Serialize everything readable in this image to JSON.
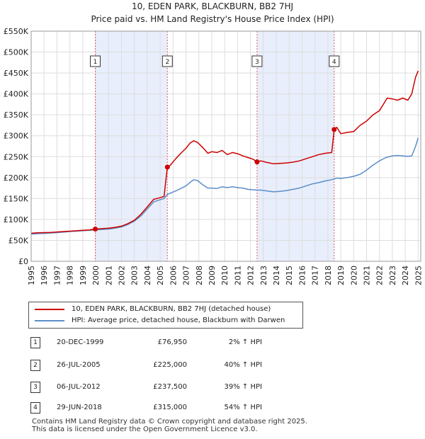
{
  "header": {
    "title": "10, EDEN PARK, BLACKBURN, BB2 7HJ",
    "subtitle": "Price paid vs. HM Land Registry's House Price Index (HPI)"
  },
  "chart_data": {
    "type": "line",
    "title": "10, EDEN PARK, BLACKBURN, BB2 7HJ",
    "subtitle": "Price paid vs. HM Land Registry's House Price Index (HPI)",
    "xlabel": "",
    "ylabel": "",
    "xlim": [
      1995,
      2025.2
    ],
    "ylim": [
      0,
      550000
    ],
    "y_ticks": [
      {
        "value": 0,
        "label": "£0"
      },
      {
        "value": 50000,
        "label": "£50K"
      },
      {
        "value": 100000,
        "label": "£100K"
      },
      {
        "value": 150000,
        "label": "£150K"
      },
      {
        "value": 200000,
        "label": "£200K"
      },
      {
        "value": 250000,
        "label": "£250K"
      },
      {
        "value": 300000,
        "label": "£300K"
      },
      {
        "value": 350000,
        "label": "£350K"
      },
      {
        "value": 400000,
        "label": "£400K"
      },
      {
        "value": 450000,
        "label": "£450K"
      },
      {
        "value": 500000,
        "label": "£500K"
      },
      {
        "value": 550000,
        "label": "£550K"
      }
    ],
    "x_ticks": [
      "1995",
      "1996",
      "1997",
      "1998",
      "1999",
      "2000",
      "2001",
      "2002",
      "2003",
      "2004",
      "2005",
      "2006",
      "2007",
      "2008",
      "2009",
      "2010",
      "2011",
      "2012",
      "2013",
      "2014",
      "2015",
      "2016",
      "2017",
      "2018",
      "2019",
      "2020",
      "2021",
      "2022",
      "2023",
      "2024",
      "2025"
    ],
    "grid": true,
    "legend_position": "below",
    "series": [
      {
        "name": "10, EDEN PARK, BLACKBURN, BB2 7HJ (detached house)",
        "color": "#cc0000",
        "x": [
          1995.0,
          1995.5,
          1996.0,
          1996.5,
          1997.0,
          1997.5,
          1998.0,
          1998.5,
          1999.0,
          1999.5,
          1999.97,
          2000.5,
          2001.0,
          2001.5,
          2002.0,
          2002.5,
          2003.0,
          2003.5,
          2004.0,
          2004.5,
          2005.0,
          2005.3,
          2005.56,
          2005.8,
          2006.2,
          2006.6,
          2007.0,
          2007.3,
          2007.6,
          2007.9,
          2008.3,
          2008.7,
          2009.0,
          2009.4,
          2009.8,
          2010.2,
          2010.6,
          2011.0,
          2011.4,
          2011.8,
          2012.2,
          2012.51,
          2012.8,
          2013.3,
          2013.8,
          2014.3,
          2014.8,
          2015.3,
          2015.8,
          2016.3,
          2016.8,
          2017.3,
          2017.8,
          2018.3,
          2018.49,
          2018.7,
          2019.0,
          2019.5,
          2020.0,
          2020.5,
          2021.0,
          2021.5,
          2022.0,
          2022.3,
          2022.6,
          2023.0,
          2023.4,
          2023.8,
          2024.2,
          2024.5,
          2024.8,
          2025.0
        ],
        "values": [
          67000,
          68000,
          68500,
          69000,
          70000,
          71000,
          72000,
          73000,
          74000,
          75000,
          76950,
          78000,
          79000,
          81000,
          84000,
          90000,
          98000,
          112000,
          130000,
          148000,
          152000,
          155000,
          225000,
          230000,
          245000,
          258000,
          270000,
          282000,
          288000,
          284000,
          272000,
          258000,
          262000,
          260000,
          265000,
          255000,
          260000,
          257000,
          252000,
          248000,
          244000,
          237500,
          240000,
          236000,
          233000,
          234000,
          235000,
          237000,
          240000,
          245000,
          250000,
          255000,
          258000,
          260000,
          315000,
          320000,
          305000,
          308000,
          310000,
          325000,
          335000,
          350000,
          360000,
          375000,
          390000,
          388000,
          385000,
          390000,
          385000,
          400000,
          440000,
          455000
        ]
      },
      {
        "name": "HPI: Average price, detached house, Blackburn with Darwen",
        "color": "#5b8ec9",
        "x": [
          1995.0,
          1995.5,
          1996.0,
          1996.5,
          1997.0,
          1997.5,
          1998.0,
          1998.5,
          1999.0,
          1999.5,
          2000.0,
          2000.5,
          2001.0,
          2001.5,
          2002.0,
          2002.5,
          2003.0,
          2003.5,
          2004.0,
          2004.5,
          2005.0,
          2005.3,
          2005.56,
          2005.8,
          2006.2,
          2006.6,
          2007.0,
          2007.3,
          2007.6,
          2007.9,
          2008.3,
          2008.7,
          2009.0,
          2009.4,
          2009.8,
          2010.2,
          2010.6,
          2011.0,
          2011.4,
          2011.8,
          2012.2,
          2012.5,
          2012.8,
          2013.3,
          2013.8,
          2014.3,
          2014.8,
          2015.3,
          2015.8,
          2016.3,
          2016.8,
          2017.3,
          2017.8,
          2018.3,
          2018.5,
          2018.7,
          2019.0,
          2019.5,
          2020.0,
          2020.5,
          2021.0,
          2021.5,
          2022.0,
          2022.5,
          2023.0,
          2023.4,
          2023.8,
          2024.2,
          2024.5,
          2024.8,
          2025.0
        ],
        "values": [
          65000,
          66000,
          66500,
          67500,
          68500,
          69500,
          71000,
          72000,
          73000,
          74000,
          75000,
          76000,
          77000,
          79000,
          82000,
          88000,
          96000,
          108000,
          125000,
          142000,
          147000,
          150000,
          160000,
          163000,
          168000,
          174000,
          180000,
          188000,
          195000,
          193000,
          183000,
          175000,
          175000,
          174000,
          178000,
          176000,
          178000,
          176000,
          175000,
          172000,
          171000,
          170000,
          170000,
          168000,
          166000,
          167000,
          169000,
          172000,
          175000,
          180000,
          185000,
          188000,
          192000,
          195000,
          197000,
          199000,
          198000,
          200000,
          203000,
          208000,
          218000,
          230000,
          240000,
          248000,
          252000,
          253000,
          252000,
          251000,
          252000,
          275000,
          295000
        ]
      }
    ],
    "sales": [
      {
        "num": "1",
        "year": 1999.97,
        "price": 76950,
        "date": "20-DEC-1999",
        "price_label": "£76,950",
        "hpi_label": "2% ↑ HPI"
      },
      {
        "num": "2",
        "year": 2005.56,
        "price": 225000,
        "date": "26-JUL-2005",
        "price_label": "£225,000",
        "hpi_label": "40% ↑ HPI"
      },
      {
        "num": "3",
        "year": 2012.51,
        "price": 237500,
        "date": "06-JUL-2012",
        "price_label": "£237,500",
        "hpi_label": "39% ↑ HPI"
      },
      {
        "num": "4",
        "year": 2018.49,
        "price": 315000,
        "date": "29-JUN-2018",
        "price_label": "£315,000",
        "hpi_label": "54% ↑ HPI"
      }
    ]
  },
  "legend": {
    "property_label": "10, EDEN PARK, BLACKBURN, BB2 7HJ (detached house)",
    "hpi_label": "HPI: Average price, detached house, Blackburn with Darwen",
    "property_color": "#cc0000",
    "hpi_color": "#5b8ec9"
  },
  "footer": {
    "line1": "Contains HM Land Registry data © Crown copyright and database right 2025.",
    "line2": "This data is licensed under the Open Government Licence v3.0."
  }
}
